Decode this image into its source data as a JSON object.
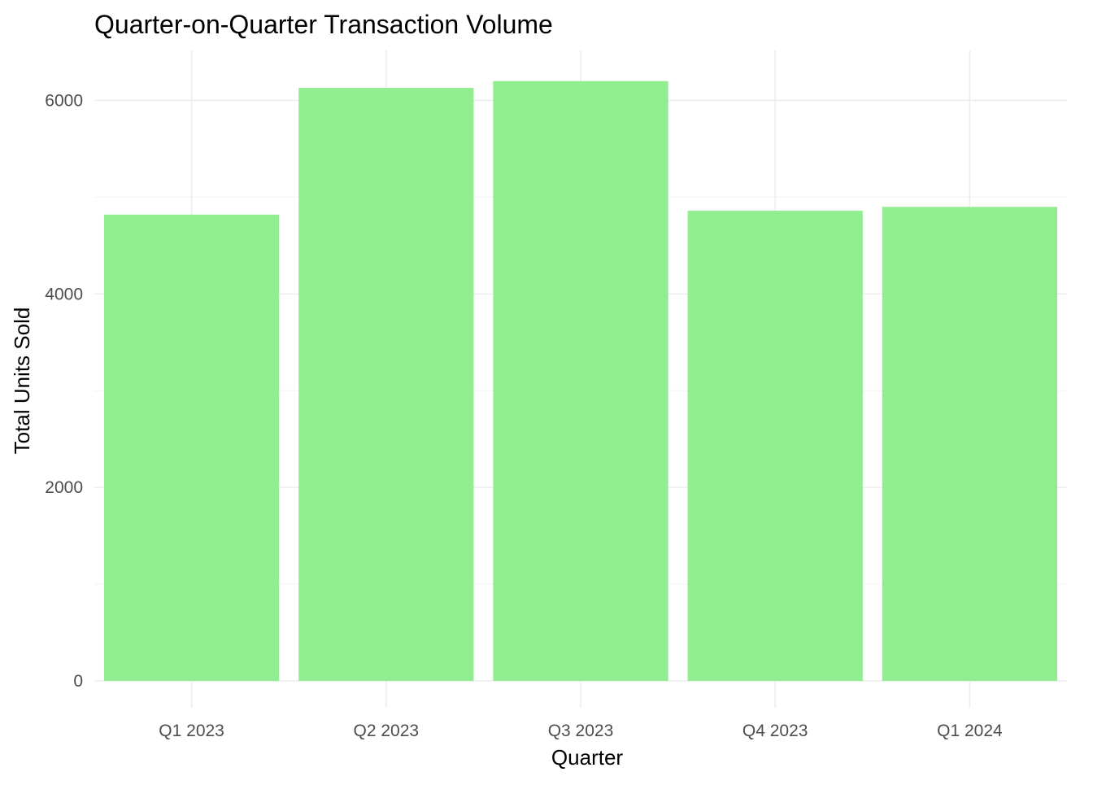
{
  "chart_data": {
    "type": "bar",
    "title": "Quarter-on-Quarter Transaction Volume",
    "xlabel": "Quarter",
    "ylabel": "Total Units Sold",
    "categories": [
      "Q1 2023",
      "Q2 2023",
      "Q3 2023",
      "Q4 2023",
      "Q1 2024"
    ],
    "values": [
      4820,
      6130,
      6200,
      4860,
      4900
    ],
    "ylim": [
      0,
      6500
    ],
    "yticks": [
      0,
      2000,
      4000,
      6000
    ],
    "ytick_labels": [
      "0",
      "2000",
      "4000",
      "6000"
    ],
    "bar_color": "#90EE90",
    "grid": true,
    "legend": "none"
  }
}
